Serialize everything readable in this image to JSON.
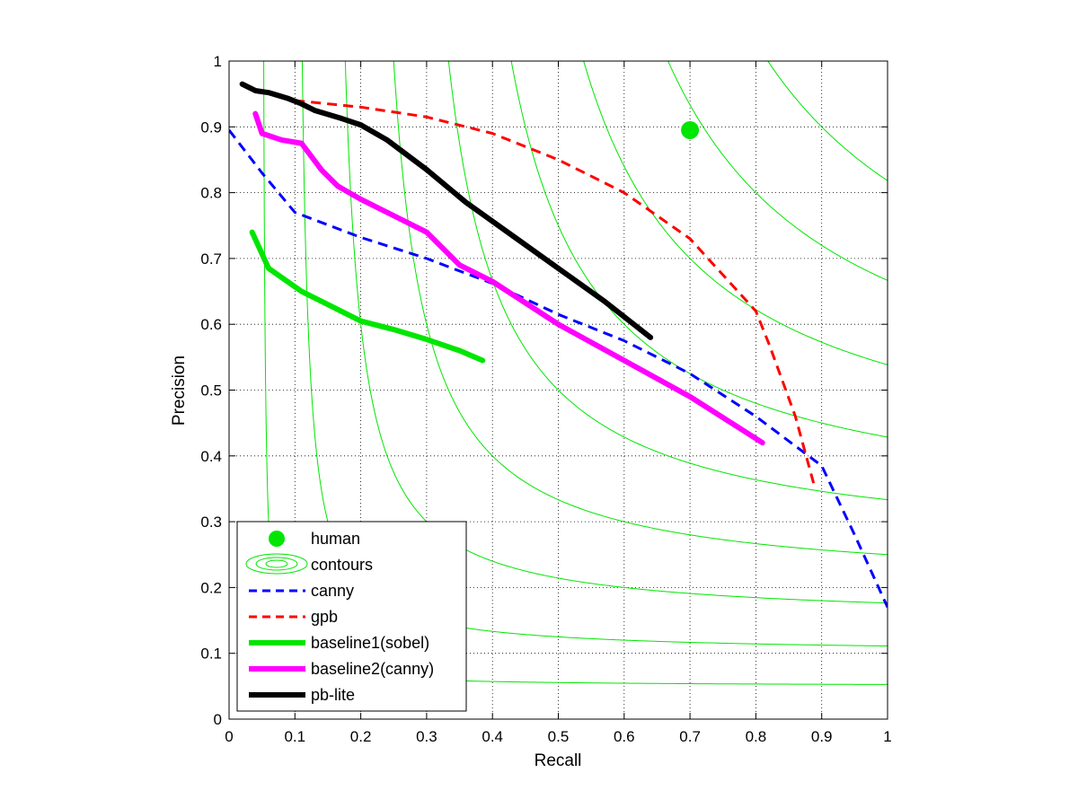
{
  "chart_data": {
    "type": "line",
    "title": "",
    "xlabel": "Recall",
    "ylabel": "Precision",
    "xlim": [
      0,
      1
    ],
    "ylim": [
      0,
      1
    ],
    "grid": true,
    "legend_position": "bottom-left",
    "xticks": [
      "0",
      "0.1",
      "0.2",
      "0.3",
      "0.4",
      "0.5",
      "0.6",
      "0.7",
      "0.8",
      "0.9",
      "1"
    ],
    "yticks": [
      "0",
      "0.1",
      "0.2",
      "0.3",
      "0.4",
      "0.5",
      "0.6",
      "0.7",
      "0.8",
      "0.9",
      "1"
    ],
    "legend": [
      "human",
      "contours",
      "canny",
      "gpb",
      "baseline1(sobel)",
      "baseline2(canny)",
      "pb-lite"
    ],
    "human_point": {
      "x": 0.7,
      "y": 0.895,
      "color": "#00e600"
    },
    "contours": {
      "color": "#00e600",
      "f_levels": [
        0.1,
        0.2,
        0.3,
        0.4,
        0.5,
        0.6,
        0.7,
        0.8,
        0.9
      ]
    },
    "series": [
      {
        "name": "canny",
        "color": "#0000ff",
        "style": "dashed",
        "x": [
          0.0,
          0.05,
          0.1,
          0.2,
          0.3,
          0.4,
          0.5,
          0.6,
          0.7,
          0.8,
          0.88,
          0.9,
          0.95,
          1.0
        ],
        "y": [
          0.895,
          0.83,
          0.77,
          0.732,
          0.7,
          0.662,
          0.615,
          0.575,
          0.525,
          0.46,
          0.4,
          0.385,
          0.28,
          0.17
        ]
      },
      {
        "name": "gpb",
        "color": "#ff0000",
        "style": "dashed",
        "x": [
          0.1,
          0.2,
          0.3,
          0.4,
          0.5,
          0.6,
          0.7,
          0.8,
          0.82,
          0.86,
          0.89
        ],
        "y": [
          0.94,
          0.93,
          0.915,
          0.89,
          0.85,
          0.8,
          0.73,
          0.62,
          0.57,
          0.46,
          0.35
        ]
      },
      {
        "name": "baseline1(sobel)",
        "color": "#00e600",
        "style": "solid",
        "x": [
          0.035,
          0.06,
          0.11,
          0.15,
          0.2,
          0.25,
          0.3,
          0.35,
          0.385
        ],
        "y": [
          0.74,
          0.685,
          0.65,
          0.63,
          0.605,
          0.592,
          0.577,
          0.56,
          0.545
        ]
      },
      {
        "name": "baseline2(canny)",
        "color": "#ff00ff",
        "style": "solid",
        "x": [
          0.04,
          0.05,
          0.08,
          0.11,
          0.14,
          0.165,
          0.2,
          0.25,
          0.3,
          0.35,
          0.4,
          0.5,
          0.6,
          0.7,
          0.81
        ],
        "y": [
          0.92,
          0.89,
          0.88,
          0.875,
          0.835,
          0.81,
          0.79,
          0.765,
          0.74,
          0.69,
          0.665,
          0.6,
          0.545,
          0.49,
          0.42
        ]
      },
      {
        "name": "pb-lite",
        "color": "#000000",
        "style": "solid",
        "x": [
          0.02,
          0.04,
          0.06,
          0.09,
          0.11,
          0.13,
          0.17,
          0.2,
          0.24,
          0.3,
          0.36,
          0.43,
          0.5,
          0.57,
          0.64
        ],
        "y": [
          0.965,
          0.955,
          0.952,
          0.943,
          0.935,
          0.925,
          0.913,
          0.903,
          0.88,
          0.835,
          0.785,
          0.735,
          0.685,
          0.635,
          0.58
        ]
      }
    ]
  }
}
